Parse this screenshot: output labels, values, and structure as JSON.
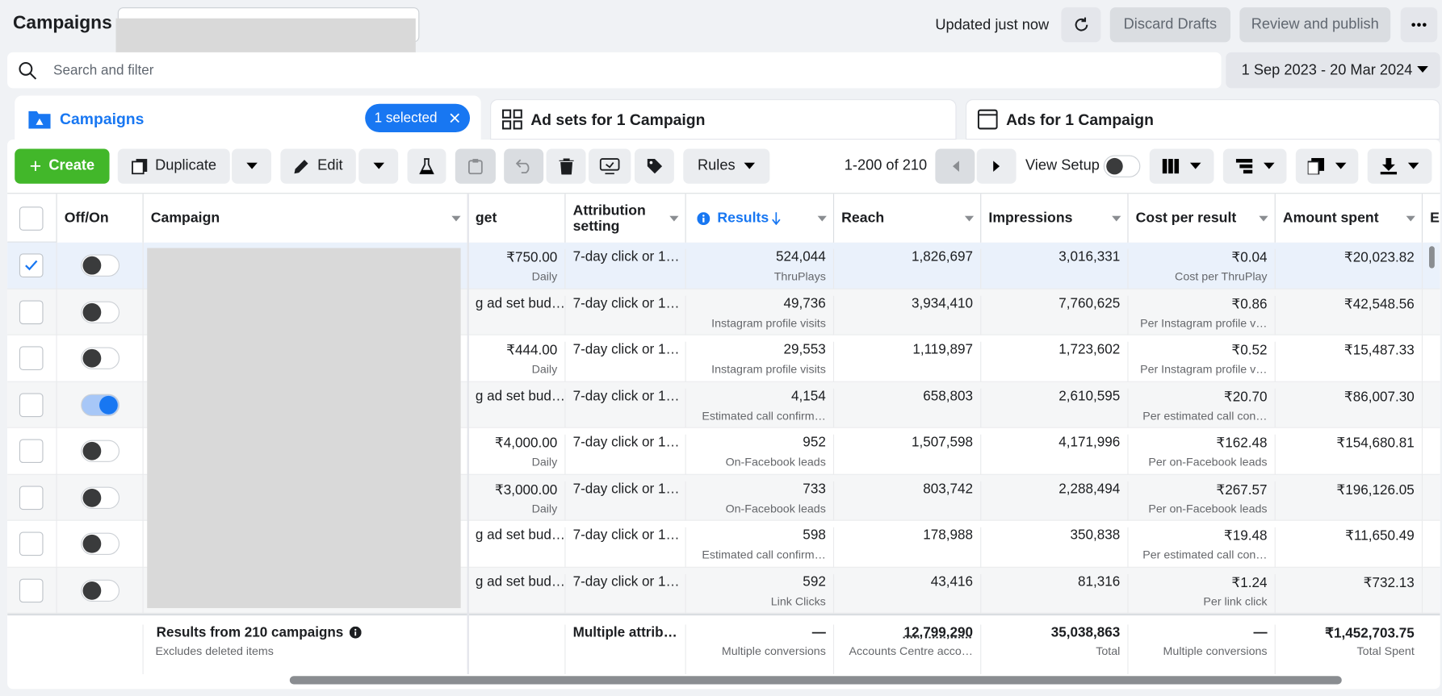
{
  "header": {
    "title": "Campaigns",
    "status": "Updated just now",
    "discard": "Discard Drafts",
    "publish": "Review and publish"
  },
  "search": {
    "placeholder": "Search and filter",
    "date_range": "1 Sep 2023 - 20 Mar 2024"
  },
  "tabs": [
    {
      "label": "Campaigns",
      "badge": "1 selected"
    },
    {
      "label": "Ad sets for 1 Campaign"
    },
    {
      "label": "Ads for 1 Campaign"
    }
  ],
  "toolbar": {
    "create": "Create",
    "duplicate": "Duplicate",
    "edit": "Edit",
    "rules": "Rules",
    "pagination": "1-200 of 210",
    "view_setup": "View Setup"
  },
  "table": {
    "columns": [
      "Off/On",
      "Campaign",
      "get",
      "Attribution setting",
      "Results",
      "Reach",
      "Impressions",
      "Cost per result",
      "Amount spent",
      "E"
    ],
    "rows": [
      {
        "checked": true,
        "on": false,
        "budget": "₹750.00",
        "budget_sub": "Daily",
        "attribution": "7-day click or 1…",
        "results": "524,044",
        "results_label": "ThruPlays",
        "reach": "1,826,697",
        "impressions": "3,016,331",
        "cost": "₹0.04",
        "cost_label": "Cost per ThruPlay",
        "spent": "₹20,023.82"
      },
      {
        "checked": false,
        "on": false,
        "budget": "g ad set bud…",
        "attribution": "7-day click or 1…",
        "results": "49,736",
        "results_label": "Instagram profile visits",
        "reach": "3,934,410",
        "impressions": "7,760,625",
        "cost": "₹0.86",
        "cost_label": "Per Instagram profile v…",
        "spent": "₹42,548.56"
      },
      {
        "checked": false,
        "on": false,
        "budget": "₹444.00",
        "budget_sub": "Daily",
        "attribution": "7-day click or 1…",
        "results": "29,553",
        "results_label": "Instagram profile visits",
        "reach": "1,119,897",
        "impressions": "1,723,602",
        "cost": "₹0.52",
        "cost_label": "Per Instagram profile v…",
        "spent": "₹15,487.33"
      },
      {
        "checked": false,
        "on": true,
        "budget": "g ad set bud…",
        "attribution": "7-day click or 1…",
        "results": "4,154",
        "results_label": "Estimated call confirm…",
        "reach": "658,803",
        "impressions": "2,610,595",
        "cost": "₹20.70",
        "cost_label": "Per estimated call con…",
        "spent": "₹86,007.30"
      },
      {
        "checked": false,
        "on": false,
        "budget": "₹4,000.00",
        "budget_sub": "Daily",
        "attribution": "7-day click or 1…",
        "results": "952",
        "results_label": "On-Facebook leads",
        "reach": "1,507,598",
        "impressions": "4,171,996",
        "cost": "₹162.48",
        "cost_label": "Per on-Facebook leads",
        "spent": "₹154,680.81"
      },
      {
        "checked": false,
        "on": false,
        "budget": "₹3,000.00",
        "budget_sub": "Daily",
        "attribution": "7-day click or 1…",
        "results": "733",
        "results_label": "On-Facebook leads",
        "reach": "803,742",
        "impressions": "2,288,494",
        "cost": "₹267.57",
        "cost_label": "Per on-Facebook leads",
        "spent": "₹196,126.05"
      },
      {
        "checked": false,
        "on": false,
        "budget": "g ad set bud…",
        "attribution": "7-day click or 1…",
        "results": "598",
        "results_label": "Estimated call confirm…",
        "reach": "178,988",
        "impressions": "350,838",
        "cost": "₹19.48",
        "cost_label": "Per estimated call con…",
        "spent": "₹11,650.49"
      },
      {
        "checked": false,
        "on": false,
        "budget": "g ad set bud…",
        "attribution": "7-day click or 1…",
        "results": "592",
        "results_label": "Link Clicks",
        "reach": "43,416",
        "impressions": "81,316",
        "cost": "₹1.24",
        "cost_label": "Per link click",
        "spent": "₹732.13"
      }
    ],
    "footer": {
      "title": "Results from 210 campaigns",
      "subtitle": "Excludes deleted items",
      "attribution": "Multiple attrib…",
      "results": "—",
      "results_label": "Multiple conversions",
      "reach": "12,799,290",
      "reach_label": "Accounts Centre acco…",
      "impressions": "35,038,863",
      "impressions_label": "Total",
      "cost": "—",
      "cost_label": "Multiple conversions",
      "spent": "₹1,452,703.75",
      "spent_label": "Total Spent"
    }
  }
}
